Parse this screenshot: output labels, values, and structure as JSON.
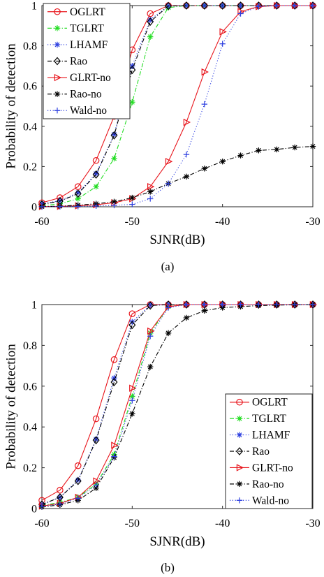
{
  "chart_data": [
    {
      "type": "line",
      "caption": "(a)",
      "xlabel": "SJNR(dB)",
      "ylabel": "Probability of detection",
      "xlim": [
        -60,
        -30
      ],
      "ylim": [
        0,
        1
      ],
      "xticks": [
        -60,
        -50,
        -40,
        -30
      ],
      "yticks": [
        0,
        0.2,
        0.4,
        0.6,
        0.8,
        1
      ],
      "xtick_labels": [
        "-60",
        "-50",
        "-40",
        "-30"
      ],
      "ytick_labels": [
        "0",
        "0.2",
        "0.4",
        "0.6",
        "0.8",
        "1"
      ],
      "grid": false,
      "legend_position": "top-left",
      "x": [
        -60,
        -58,
        -56,
        -54,
        -52,
        -50,
        -48,
        -46,
        -44,
        -42,
        -40,
        -38,
        -36,
        -34,
        -32,
        -30
      ],
      "series": [
        {
          "name": "OGLRT",
          "color": "#e8141b",
          "marker": "circle",
          "dash": "solid",
          "values": [
            0.02,
            0.045,
            0.1,
            0.23,
            0.45,
            0.78,
            0.96,
            1,
            1,
            1,
            1,
            1,
            1,
            1,
            1,
            1
          ]
        },
        {
          "name": "TGLRT",
          "color": "#22dd22",
          "marker": "star",
          "dash": "dashdot",
          "values": [
            0.005,
            0.015,
            0.04,
            0.1,
            0.24,
            0.52,
            0.845,
            0.99,
            1,
            1,
            1,
            1,
            1,
            1,
            1,
            1
          ]
        },
        {
          "name": "LHAMF",
          "color": "#2d3fe0",
          "marker": "asterisk",
          "dash": "dot",
          "values": [
            0.015,
            0.03,
            0.07,
            0.165,
            0.36,
            0.7,
            0.93,
            0.998,
            1,
            1,
            1,
            1,
            1,
            1,
            1,
            1
          ]
        },
        {
          "name": "Rao",
          "color": "#000000",
          "marker": "diamond",
          "dash": "dashdot",
          "values": [
            0.012,
            0.028,
            0.065,
            0.16,
            0.355,
            0.68,
            0.92,
            0.998,
            1,
            1,
            1,
            1,
            1,
            1,
            1,
            1
          ]
        },
        {
          "name": "GLRT-no",
          "color": "#e8141b",
          "marker": "triangle-right",
          "dash": "solid",
          "values": [
            0.001,
            0.002,
            0.005,
            0.01,
            0.02,
            0.04,
            0.1,
            0.225,
            0.42,
            0.67,
            0.87,
            0.97,
            0.995,
            1,
            1,
            1
          ]
        },
        {
          "name": "Rao-no",
          "color": "#000000",
          "marker": "asterisk",
          "dash": "dashdot",
          "values": [
            0.001,
            0.003,
            0.008,
            0.015,
            0.025,
            0.045,
            0.075,
            0.115,
            0.15,
            0.19,
            0.225,
            0.255,
            0.28,
            0.285,
            0.295,
            0.3
          ]
        },
        {
          "name": "Wald-no",
          "color": "#2d3fe0",
          "marker": "plus",
          "dash": "dot",
          "values": [
            0,
            0.001,
            0.002,
            0.004,
            0.007,
            0.012,
            0.04,
            0.115,
            0.26,
            0.51,
            0.81,
            0.96,
            0.995,
            1,
            1,
            1
          ]
        }
      ]
    },
    {
      "type": "line",
      "caption": "(b)",
      "xlabel": "SJNR(dB)",
      "ylabel": "Probability of detection",
      "xlim": [
        -60,
        -30
      ],
      "ylim": [
        0,
        1
      ],
      "xticks": [
        -60,
        -50,
        -40,
        -30
      ],
      "yticks": [
        0,
        0.2,
        0.4,
        0.6,
        0.8,
        1
      ],
      "xtick_labels": [
        "-60",
        "-50",
        "-40",
        "-30"
      ],
      "ytick_labels": [
        "0",
        "0.2",
        "0.4",
        "0.6",
        "0.8",
        "1"
      ],
      "grid": false,
      "legend_position": "bottom-right",
      "x": [
        -60,
        -58,
        -56,
        -54,
        -52,
        -50,
        -48,
        -46,
        -44,
        -42,
        -40,
        -38,
        -36,
        -34,
        -32,
        -30
      ],
      "series": [
        {
          "name": "OGLRT",
          "color": "#e8141b",
          "marker": "circle",
          "dash": "solid",
          "values": [
            0.04,
            0.09,
            0.21,
            0.44,
            0.73,
            0.955,
            1,
            1,
            1,
            1,
            1,
            1,
            1,
            1,
            1,
            1
          ]
        },
        {
          "name": "TGLRT",
          "color": "#22dd22",
          "marker": "star",
          "dash": "dashdot",
          "values": [
            0.015,
            0.03,
            0.055,
            0.12,
            0.265,
            0.55,
            0.86,
            0.99,
            1,
            1,
            1,
            1,
            1,
            1,
            1,
            1
          ]
        },
        {
          "name": "LHAMF",
          "color": "#2d3fe0",
          "marker": "asterisk",
          "dash": "dot",
          "values": [
            0.02,
            0.055,
            0.14,
            0.34,
            0.64,
            0.915,
            0.998,
            1,
            1,
            1,
            1,
            1,
            1,
            1,
            1,
            1
          ]
        },
        {
          "name": "Rao",
          "color": "#000000",
          "marker": "diamond",
          "dash": "dashdot",
          "values": [
            0.02,
            0.055,
            0.135,
            0.335,
            0.62,
            0.9,
            0.995,
            1,
            1,
            1,
            1,
            1,
            1,
            1,
            1,
            1
          ]
        },
        {
          "name": "GLRT-no",
          "color": "#e8141b",
          "marker": "triangle-right",
          "dash": "solid",
          "values": [
            0.012,
            0.025,
            0.055,
            0.135,
            0.31,
            0.59,
            0.87,
            0.99,
            1,
            1,
            1,
            1,
            1,
            1,
            1,
            1
          ]
        },
        {
          "name": "Rao-no",
          "color": "#000000",
          "marker": "asterisk",
          "dash": "dashdot",
          "values": [
            0.008,
            0.018,
            0.04,
            0.1,
            0.25,
            0.465,
            0.695,
            0.86,
            0.935,
            0.97,
            0.985,
            0.99,
            0.995,
            0.997,
            0.999,
            1
          ]
        },
        {
          "name": "Wald-no",
          "color": "#2d3fe0",
          "marker": "plus",
          "dash": "dot",
          "values": [
            0.01,
            0.022,
            0.05,
            0.115,
            0.255,
            0.53,
            0.845,
            0.985,
            1,
            1,
            1,
            1,
            1,
            1,
            1,
            1
          ]
        }
      ]
    }
  ]
}
